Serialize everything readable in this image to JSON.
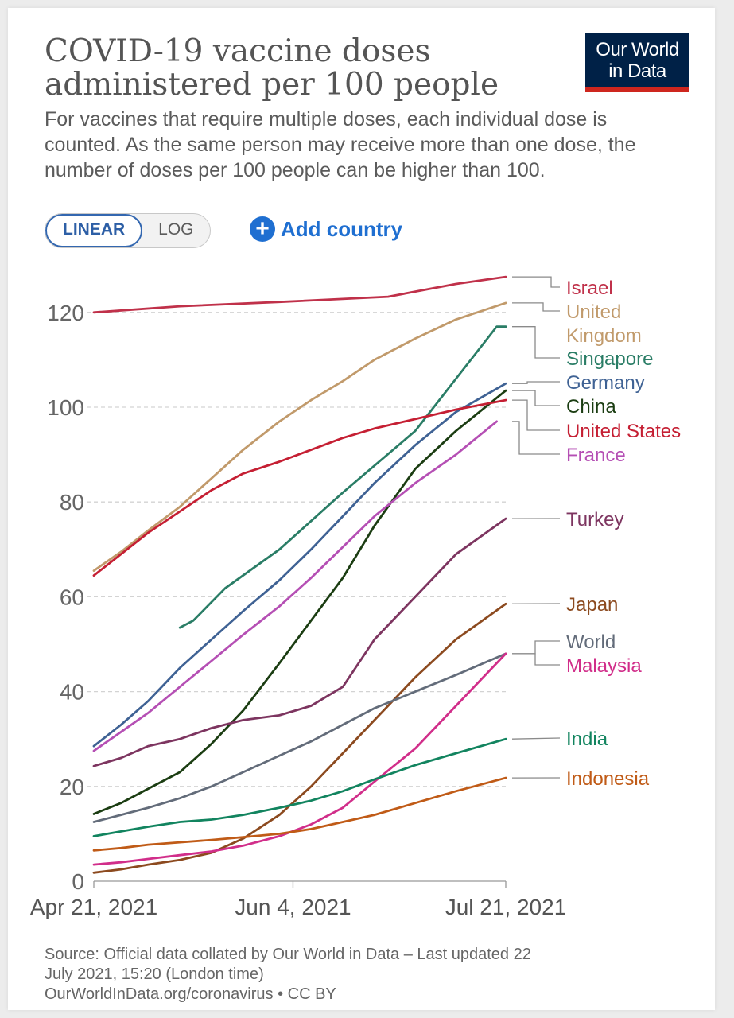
{
  "logo": {
    "line1": "Our World",
    "line2": "in Data"
  },
  "toggle": {
    "linear": "LINEAR",
    "log": "LOG"
  },
  "add_country": {
    "label": "Add country"
  },
  "footer": {
    "line1": "Source: Official data collated by Our World in Data – Last updated 22",
    "line2": "July 2021, 15:20 (London time)",
    "line3": "OurWorldInData.org/coronavirus • CC BY"
  },
  "chart_data": {
    "type": "line",
    "title": "COVID-19 vaccine doses administered per 100 people",
    "subtitle": "For vaccines that require multiple doses, each individual dose is counted. As the same person may receive more than one dose, the number of doses per 100 people can be higher than 100.",
    "xlabel": "",
    "ylabel": "",
    "x_range": [
      "2021-04-21",
      "2021-07-21"
    ],
    "x_ticks": [
      "Apr 21, 2021",
      "Jun 4, 2021",
      "Jul 21, 2021"
    ],
    "y_ticks": [
      0,
      20,
      40,
      60,
      80,
      100,
      120
    ],
    "ylim": [
      0,
      128
    ],
    "grid": "horizontal dashed",
    "legend": "right, labels at line ends",
    "series": [
      {
        "name": "Israel",
        "color": "#c0314a",
        "points": [
          [
            "2021-04-21",
            120
          ],
          [
            "2021-05-10",
            121.3
          ],
          [
            "2021-06-01",
            122.2
          ],
          [
            "2021-06-25",
            123.3
          ],
          [
            "2021-07-10",
            126
          ],
          [
            "2021-07-21",
            127.5
          ]
        ]
      },
      {
        "name": "United Kingdom",
        "color": "#c19a6b",
        "points": [
          [
            "2021-04-21",
            65.5
          ],
          [
            "2021-04-27",
            69.5
          ],
          [
            "2021-05-03",
            74
          ],
          [
            "2021-05-10",
            79
          ],
          [
            "2021-05-17",
            85
          ],
          [
            "2021-05-24",
            91
          ],
          [
            "2021-06-01",
            97
          ],
          [
            "2021-06-08",
            101.5
          ],
          [
            "2021-06-15",
            105.5
          ],
          [
            "2021-06-22",
            110
          ],
          [
            "2021-07-01",
            114.5
          ],
          [
            "2021-07-10",
            118.5
          ],
          [
            "2021-07-21",
            122
          ]
        ]
      },
      {
        "name": "Singapore",
        "color": "#2a7d66",
        "points": [
          [
            "2021-05-10",
            53.5
          ],
          [
            "2021-05-13",
            55
          ],
          [
            "2021-05-20",
            61.8
          ],
          [
            "2021-06-01",
            70
          ],
          [
            "2021-06-15",
            82
          ],
          [
            "2021-07-01",
            95
          ],
          [
            "2021-07-10",
            106
          ],
          [
            "2021-07-19",
            117
          ],
          [
            "2021-07-21",
            117
          ]
        ]
      },
      {
        "name": "Germany",
        "color": "#3f6294",
        "points": [
          [
            "2021-04-21",
            28.5
          ],
          [
            "2021-04-27",
            33
          ],
          [
            "2021-05-03",
            38
          ],
          [
            "2021-05-10",
            45
          ],
          [
            "2021-05-17",
            51
          ],
          [
            "2021-05-24",
            57
          ],
          [
            "2021-06-01",
            63.5
          ],
          [
            "2021-06-08",
            70
          ],
          [
            "2021-06-15",
            77
          ],
          [
            "2021-06-22",
            84
          ],
          [
            "2021-07-01",
            92
          ],
          [
            "2021-07-10",
            99
          ],
          [
            "2021-07-21",
            105
          ]
        ]
      },
      {
        "name": "China",
        "color": "#1b3d12",
        "points": [
          [
            "2021-04-21",
            14.2
          ],
          [
            "2021-04-27",
            16.5
          ],
          [
            "2021-05-03",
            19.5
          ],
          [
            "2021-05-10",
            23
          ],
          [
            "2021-05-17",
            29
          ],
          [
            "2021-05-24",
            36
          ],
          [
            "2021-06-01",
            46
          ],
          [
            "2021-06-08",
            55
          ],
          [
            "2021-06-15",
            64
          ],
          [
            "2021-06-22",
            75
          ],
          [
            "2021-07-01",
            87
          ],
          [
            "2021-07-10",
            95
          ],
          [
            "2021-07-21",
            103.5
          ]
        ]
      },
      {
        "name": "United States",
        "color": "#c51f33",
        "points": [
          [
            "2021-04-21",
            64.5
          ],
          [
            "2021-04-27",
            69
          ],
          [
            "2021-05-03",
            73.5
          ],
          [
            "2021-05-10",
            78
          ],
          [
            "2021-05-17",
            82.5
          ],
          [
            "2021-05-24",
            86
          ],
          [
            "2021-06-01",
            88.5
          ],
          [
            "2021-06-08",
            91
          ],
          [
            "2021-06-15",
            93.5
          ],
          [
            "2021-06-22",
            95.5
          ],
          [
            "2021-07-01",
            97.5
          ],
          [
            "2021-07-10",
            99.5
          ],
          [
            "2021-07-21",
            101.5
          ]
        ]
      },
      {
        "name": "France",
        "color": "#b54fb4",
        "points": [
          [
            "2021-04-21",
            27.5
          ],
          [
            "2021-04-27",
            31.5
          ],
          [
            "2021-05-03",
            35.5
          ],
          [
            "2021-05-10",
            41
          ],
          [
            "2021-05-17",
            46.5
          ],
          [
            "2021-05-24",
            52
          ],
          [
            "2021-06-01",
            58
          ],
          [
            "2021-06-08",
            64
          ],
          [
            "2021-06-15",
            70.5
          ],
          [
            "2021-06-22",
            77
          ],
          [
            "2021-07-01",
            84
          ],
          [
            "2021-07-10",
            90
          ],
          [
            "2021-07-19",
            97
          ]
        ]
      },
      {
        "name": "Turkey",
        "color": "#7d3560",
        "points": [
          [
            "2021-04-21",
            24.3
          ],
          [
            "2021-04-27",
            26
          ],
          [
            "2021-05-03",
            28.5
          ],
          [
            "2021-05-10",
            30
          ],
          [
            "2021-05-17",
            32.3
          ],
          [
            "2021-05-24",
            34
          ],
          [
            "2021-06-01",
            35
          ],
          [
            "2021-06-08",
            37
          ],
          [
            "2021-06-15",
            41
          ],
          [
            "2021-06-22",
            51
          ],
          [
            "2021-07-01",
            60
          ],
          [
            "2021-07-10",
            69
          ],
          [
            "2021-07-21",
            76.5
          ]
        ]
      },
      {
        "name": "Japan",
        "color": "#8c4a1f",
        "points": [
          [
            "2021-04-21",
            1.8
          ],
          [
            "2021-04-27",
            2.5
          ],
          [
            "2021-05-03",
            3.5
          ],
          [
            "2021-05-10",
            4.5
          ],
          [
            "2021-05-17",
            6
          ],
          [
            "2021-05-24",
            9
          ],
          [
            "2021-06-01",
            14
          ],
          [
            "2021-06-08",
            20
          ],
          [
            "2021-06-15",
            27
          ],
          [
            "2021-06-22",
            34
          ],
          [
            "2021-07-01",
            43
          ],
          [
            "2021-07-10",
            51
          ],
          [
            "2021-07-21",
            58.5
          ]
        ]
      },
      {
        "name": "World",
        "color": "#636c7a",
        "points": [
          [
            "2021-04-21",
            12.5
          ],
          [
            "2021-04-27",
            14
          ],
          [
            "2021-05-03",
            15.5
          ],
          [
            "2021-05-10",
            17.5
          ],
          [
            "2021-05-17",
            20
          ],
          [
            "2021-05-24",
            23
          ],
          [
            "2021-06-01",
            26.5
          ],
          [
            "2021-06-08",
            29.5
          ],
          [
            "2021-06-15",
            33
          ],
          [
            "2021-06-22",
            36.5
          ],
          [
            "2021-07-01",
            40
          ],
          [
            "2021-07-10",
            43.5
          ],
          [
            "2021-07-21",
            48
          ]
        ]
      },
      {
        "name": "Malaysia",
        "color": "#d12e8a",
        "points": [
          [
            "2021-04-21",
            3.5
          ],
          [
            "2021-04-27",
            4
          ],
          [
            "2021-05-03",
            4.7
          ],
          [
            "2021-05-10",
            5.5
          ],
          [
            "2021-05-17",
            6.3
          ],
          [
            "2021-05-24",
            7.5
          ],
          [
            "2021-06-01",
            9.5
          ],
          [
            "2021-06-08",
            12
          ],
          [
            "2021-06-15",
            15.5
          ],
          [
            "2021-06-22",
            21
          ],
          [
            "2021-07-01",
            28
          ],
          [
            "2021-07-10",
            37
          ],
          [
            "2021-07-21",
            48
          ]
        ]
      },
      {
        "name": "India",
        "color": "#12845f",
        "points": [
          [
            "2021-04-21",
            9.5
          ],
          [
            "2021-04-27",
            10.5
          ],
          [
            "2021-05-03",
            11.5
          ],
          [
            "2021-05-10",
            12.5
          ],
          [
            "2021-05-17",
            13
          ],
          [
            "2021-05-24",
            14
          ],
          [
            "2021-06-01",
            15.5
          ],
          [
            "2021-06-08",
            17
          ],
          [
            "2021-06-15",
            19
          ],
          [
            "2021-06-22",
            21.5
          ],
          [
            "2021-07-01",
            24.5
          ],
          [
            "2021-07-10",
            27
          ],
          [
            "2021-07-21",
            30
          ]
        ]
      },
      {
        "name": "Indonesia",
        "color": "#c05b17",
        "points": [
          [
            "2021-04-21",
            6.5
          ],
          [
            "2021-04-27",
            7
          ],
          [
            "2021-05-03",
            7.7
          ],
          [
            "2021-05-10",
            8.2
          ],
          [
            "2021-05-17",
            8.7
          ],
          [
            "2021-05-24",
            9.3
          ],
          [
            "2021-06-01",
            10
          ],
          [
            "2021-06-08",
            11
          ],
          [
            "2021-06-15",
            12.5
          ],
          [
            "2021-06-22",
            14
          ],
          [
            "2021-07-01",
            16.5
          ],
          [
            "2021-07-10",
            19
          ],
          [
            "2021-07-21",
            21.8
          ]
        ]
      }
    ],
    "label_lines": [
      {
        "series": "Israel",
        "lines": [
          "Israel"
        ]
      },
      {
        "series": "United Kingdom",
        "lines": [
          "United",
          "Kingdom"
        ]
      },
      {
        "series": "Singapore",
        "lines": [
          "Singapore"
        ]
      },
      {
        "series": "Germany",
        "lines": [
          "Germany"
        ]
      },
      {
        "series": "China",
        "lines": [
          "China"
        ]
      },
      {
        "series": "United States",
        "lines": [
          "United States"
        ]
      },
      {
        "series": "France",
        "lines": [
          "France"
        ]
      },
      {
        "series": "Turkey",
        "lines": [
          "Turkey"
        ]
      },
      {
        "series": "Japan",
        "lines": [
          "Japan"
        ]
      },
      {
        "series": "World",
        "lines": [
          "World"
        ]
      },
      {
        "series": "Malaysia",
        "lines": [
          "Malaysia"
        ]
      },
      {
        "series": "India",
        "lines": [
          "India"
        ]
      },
      {
        "series": "Indonesia",
        "lines": [
          "Indonesia"
        ]
      }
    ]
  }
}
